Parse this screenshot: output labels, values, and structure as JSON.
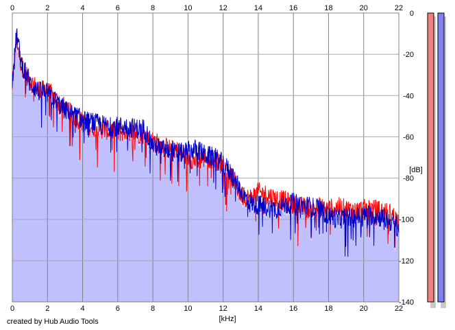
{
  "credit": "created by Hub Audio Tools",
  "chart_data": {
    "type": "line",
    "xlabel": "[kHz]",
    "ylabel": "[dB]",
    "xlim": [
      0,
      22
    ],
    "ylim": [
      -140,
      0
    ],
    "x_ticks": [
      "0",
      "2",
      "4",
      "6",
      "8",
      "10",
      "12",
      "14",
      "16",
      "18",
      "20",
      "22"
    ],
    "y_ticks": [
      "0",
      "-20",
      "-40",
      "-60",
      "-80",
      "-100",
      "-120",
      "-140"
    ],
    "grid": true,
    "colors": {
      "left": "#ff0000",
      "right": "#0000cc",
      "fill": "#c0c0ff",
      "meter_left": "#f08080",
      "meter_right": "#8080f0"
    },
    "series": [
      {
        "channel": "left",
        "x": [
          0,
          0.25,
          0.5,
          1,
          1.5,
          2,
          2.5,
          3,
          3.5,
          4,
          4.5,
          5,
          5.5,
          6,
          6.5,
          7,
          7.5,
          8,
          8.5,
          9,
          9.5,
          10,
          10.5,
          11,
          11.5,
          12,
          12.5,
          13,
          13.5,
          14,
          14.5,
          15,
          15.5,
          16,
          16.5,
          17,
          17.5,
          18,
          18.5,
          19,
          19.5,
          20,
          20.5,
          21,
          21.5,
          22
        ],
        "y": [
          -35,
          -12,
          -25,
          -33,
          -37,
          -38,
          -42,
          -46,
          -50,
          -53,
          -55,
          -56,
          -57,
          -58,
          -57,
          -58,
          -59,
          -62,
          -64,
          -66,
          -67,
          -70,
          -72,
          -70,
          -71,
          -74,
          -79,
          -88,
          -90,
          -87,
          -88,
          -90,
          -91,
          -93,
          -94,
          -95,
          -94,
          -95,
          -94,
          -95,
          -96,
          -95,
          -95,
          -96,
          -97,
          -101
        ]
      },
      {
        "channel": "right",
        "x": [
          0,
          0.25,
          0.5,
          1,
          1.5,
          2,
          2.5,
          3,
          3.5,
          4,
          4.5,
          5,
          5.5,
          6,
          6.5,
          7,
          7.5,
          8,
          8.5,
          9,
          9.5,
          10,
          10.5,
          11,
          11.5,
          12,
          12.5,
          13,
          13.5,
          14,
          14.5,
          15,
          15.5,
          16,
          16.5,
          17,
          17.5,
          18,
          18.5,
          19,
          19.5,
          20,
          20.5,
          21,
          21.5,
          22
        ],
        "y": [
          -32,
          -10,
          -24,
          -34,
          -38,
          -39,
          -43,
          -47,
          -49,
          -52,
          -53,
          -54,
          -55,
          -55,
          -55,
          -56,
          -56,
          -64,
          -66,
          -67,
          -68,
          -67,
          -66,
          -69,
          -70,
          -73,
          -78,
          -86,
          -92,
          -93,
          -94,
          -95,
          -93,
          -92,
          -93,
          -94,
          -95,
          -98,
          -100,
          -99,
          -99,
          -98,
          -98,
          -99,
          -101,
          -104
        ]
      }
    ]
  }
}
